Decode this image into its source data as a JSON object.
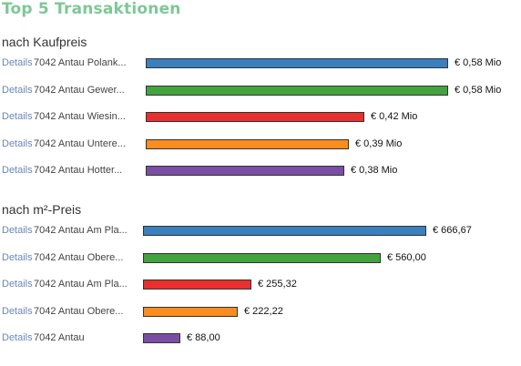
{
  "title": "Top 5 Transaktionen",
  "colors": [
    "#3a7fbe",
    "#43a33e",
    "#e8302e",
    "#fb8c1e",
    "#7a4ea3"
  ],
  "sections": [
    {
      "heading": "nach Kaufpreis",
      "rows": [
        {
          "details": "Details",
          "location": "7042 Antau Polank...",
          "value": 0.58,
          "label": "€ 0,58 Mio"
        },
        {
          "details": "Details",
          "location": "7042 Antau Gewer...",
          "value": 0.58,
          "label": "€ 0,58 Mio"
        },
        {
          "details": "Details",
          "location": "7042 Antau Wiesin...",
          "value": 0.42,
          "label": "€ 0,42 Mio"
        },
        {
          "details": "Details",
          "location": "7042 Antau Untere...",
          "value": 0.39,
          "label": "€ 0,39 Mio"
        },
        {
          "details": "Details",
          "location": "7042 Antau Hotter...",
          "value": 0.38,
          "label": "€ 0,38 Mio"
        }
      ]
    },
    {
      "heading": "nach m²-Preis",
      "rows": [
        {
          "details": "Details",
          "location": "7042 Antau Am Pla...",
          "value": 666.67,
          "label": "€ 666,67"
        },
        {
          "details": "Details",
          "location": "7042 Antau Obere...",
          "value": 560.0,
          "label": "€ 560,00"
        },
        {
          "details": "Details",
          "location": "7042 Antau Am Pla...",
          "value": 255.32,
          "label": "€ 255,32"
        },
        {
          "details": "Details",
          "location": "7042 Antau Obere...",
          "value": 222.22,
          "label": "€ 222,22"
        },
        {
          "details": "Details",
          "location": "7042 Antau",
          "value": 88.0,
          "label": "€ 88,00"
        }
      ]
    }
  ]
}
